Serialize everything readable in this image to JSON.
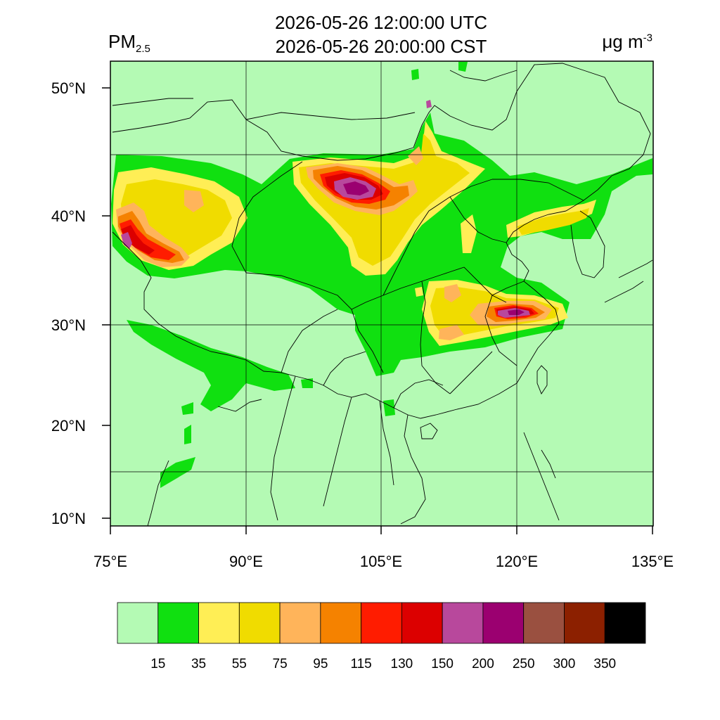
{
  "header": {
    "time_utc": "2026-05-26 12:00:00 UTC",
    "time_cst": "2026-05-26 20:00:00 CST",
    "variable": "PM",
    "variable_sub": "2.5",
    "unit": "μg m",
    "unit_exp": "-3"
  },
  "map": {
    "lon_range": [
      75,
      135
    ],
    "lat_range": [
      9,
      52
    ],
    "lon_ticks": [
      {
        "value": 75,
        "label": "75°E"
      },
      {
        "value": 90,
        "label": "90°E"
      },
      {
        "value": 105,
        "label": "105°E"
      },
      {
        "value": 120,
        "label": "120°E"
      },
      {
        "value": 135,
        "label": "135°E"
      }
    ],
    "lat_ticks": [
      {
        "value": 10,
        "label": "10°N"
      },
      {
        "value": 20,
        "label": "20°N"
      },
      {
        "value": 30,
        "label": "30°N"
      },
      {
        "value": 40,
        "label": "40°N"
      },
      {
        "value": 50,
        "label": "50°N"
      }
    ],
    "gridlines": true
  },
  "colorbar": {
    "colors": [
      "#b4fab4",
      "#10e010",
      "#ffee55",
      "#f0dc00",
      "#ffb45a",
      "#f58200",
      "#ff1c00",
      "#dc0000",
      "#b8489c",
      "#9b0070",
      "#9a5040",
      "#8c2000",
      "#000000"
    ],
    "labels": [
      "15",
      "35",
      "55",
      "75",
      "95",
      "115",
      "130",
      "150",
      "200",
      "250",
      "300",
      "350"
    ]
  },
  "colors": {
    "background_level": "#b4fab4",
    "land_border": "#000000"
  }
}
